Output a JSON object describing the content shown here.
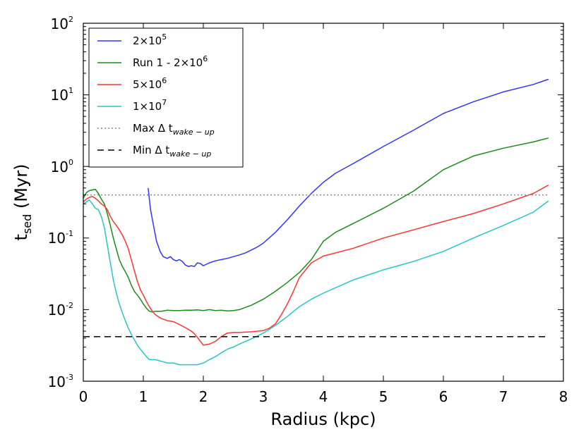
{
  "chart_data": {
    "type": "line",
    "title": "",
    "xlabel": "Radius (kpc)",
    "ylabel": {
      "base": "t",
      "sub": "sed",
      "suffix": " (Myr)"
    },
    "xlim": [
      0,
      8
    ],
    "ylim_log10": [
      -3,
      2
    ],
    "yscale": "log",
    "grid": false,
    "legend_position": "top-left",
    "x_ticks": [
      "0",
      "1",
      "2",
      "3",
      "4",
      "5",
      "6",
      "7",
      "8"
    ],
    "y_ticks": [
      {
        "base": "10",
        "exp": "-3"
      },
      {
        "base": "10",
        "exp": "-2"
      },
      {
        "base": "10",
        "exp": "-1"
      },
      {
        "base": "10",
        "exp": "0"
      },
      {
        "base": "10",
        "exp": "1"
      },
      {
        "base": "10",
        "exp": "2"
      }
    ],
    "series": [
      {
        "name": "2×10^5",
        "legend": {
          "base": "2×10",
          "sup": "5",
          "sub": ""
        },
        "color": "#3333ff",
        "dash": "",
        "x": [
          1.08,
          1.12,
          1.17,
          1.22,
          1.28,
          1.33,
          1.4,
          1.45,
          1.5,
          1.55,
          1.6,
          1.65,
          1.7,
          1.75,
          1.8,
          1.85,
          1.9,
          1.95,
          2.0,
          2.05,
          2.1,
          2.2,
          2.3,
          2.4,
          2.5,
          2.6,
          2.7,
          2.8,
          2.9,
          3.0,
          3.2,
          3.4,
          3.6,
          3.8,
          4.0,
          4.2,
          4.5,
          5.0,
          5.5,
          6.0,
          6.5,
          7.0,
          7.5,
          7.75
        ],
        "y": [
          0.5,
          0.25,
          0.15,
          0.09,
          0.065,
          0.055,
          0.052,
          0.055,
          0.05,
          0.048,
          0.05,
          0.047,
          0.042,
          0.04,
          0.041,
          0.04,
          0.045,
          0.044,
          0.041,
          0.043,
          0.045,
          0.048,
          0.05,
          0.052,
          0.055,
          0.058,
          0.062,
          0.068,
          0.075,
          0.085,
          0.12,
          0.18,
          0.28,
          0.42,
          0.6,
          0.8,
          1.1,
          1.9,
          3.2,
          5.5,
          8.0,
          11.0,
          14.0,
          16.5
        ]
      },
      {
        "name": "Run 1 - 2×10^6",
        "legend": {
          "base": "Run 1 - 2×10",
          "sup": "6",
          "sub": ""
        },
        "color": "#1a8c1a",
        "dash": "",
        "x": [
          0.0,
          0.05,
          0.1,
          0.15,
          0.2,
          0.25,
          0.3,
          0.35,
          0.4,
          0.45,
          0.5,
          0.55,
          0.6,
          0.65,
          0.7,
          0.75,
          0.8,
          0.85,
          0.9,
          0.95,
          1.0,
          1.05,
          1.1,
          1.15,
          1.2,
          1.3,
          1.4,
          1.5,
          1.6,
          1.7,
          1.8,
          1.9,
          2.0,
          2.1,
          2.2,
          2.3,
          2.4,
          2.5,
          2.6,
          2.8,
          3.0,
          3.2,
          3.4,
          3.6,
          3.8,
          4.0,
          4.2,
          4.5,
          5.0,
          5.5,
          6.0,
          6.5,
          7.0,
          7.5,
          7.75
        ],
        "y": [
          0.36,
          0.43,
          0.46,
          0.47,
          0.48,
          0.42,
          0.35,
          0.3,
          0.22,
          0.15,
          0.1,
          0.07,
          0.05,
          0.04,
          0.034,
          0.028,
          0.022,
          0.018,
          0.016,
          0.014,
          0.012,
          0.0105,
          0.0095,
          0.0093,
          0.0095,
          0.0095,
          0.0098,
          0.0097,
          0.0097,
          0.0098,
          0.0098,
          0.0099,
          0.0097,
          0.01,
          0.0097,
          0.0098,
          0.0096,
          0.0097,
          0.01,
          0.0115,
          0.014,
          0.018,
          0.024,
          0.033,
          0.05,
          0.09,
          0.12,
          0.16,
          0.26,
          0.45,
          0.9,
          1.4,
          1.8,
          2.2,
          2.5
        ]
      },
      {
        "name": "5×10^6",
        "legend": {
          "base": "5×10",
          "sup": "6",
          "sub": ""
        },
        "color": "#ff3333",
        "dash": "",
        "x": [
          0.0,
          0.05,
          0.1,
          0.15,
          0.2,
          0.25,
          0.3,
          0.35,
          0.4,
          0.45,
          0.5,
          0.55,
          0.6,
          0.65,
          0.7,
          0.75,
          0.8,
          0.85,
          0.9,
          0.95,
          1.0,
          1.05,
          1.1,
          1.15,
          1.2,
          1.3,
          1.4,
          1.5,
          1.6,
          1.7,
          1.8,
          1.85,
          1.9,
          1.95,
          2.0,
          2.1,
          2.2,
          2.3,
          2.4,
          2.5,
          2.6,
          2.8,
          3.0,
          3.1,
          3.2,
          3.3,
          3.4,
          3.5,
          3.6,
          3.8,
          4.0,
          4.5,
          5.0,
          5.5,
          6.0,
          6.5,
          7.0,
          7.5,
          7.75
        ],
        "y": [
          0.32,
          0.35,
          0.37,
          0.38,
          0.36,
          0.33,
          0.3,
          0.28,
          0.25,
          0.2,
          0.17,
          0.15,
          0.13,
          0.11,
          0.09,
          0.07,
          0.05,
          0.035,
          0.025,
          0.019,
          0.016,
          0.013,
          0.011,
          0.0095,
          0.0085,
          0.0075,
          0.007,
          0.0068,
          0.0062,
          0.0056,
          0.005,
          0.0046,
          0.0041,
          0.0036,
          0.0032,
          0.0033,
          0.0036,
          0.0042,
          0.0047,
          0.0048,
          0.0048,
          0.0049,
          0.0051,
          0.0055,
          0.0063,
          0.0085,
          0.012,
          0.018,
          0.028,
          0.045,
          0.056,
          0.072,
          0.1,
          0.13,
          0.17,
          0.22,
          0.3,
          0.42,
          0.55
        ]
      },
      {
        "name": "1×10^7",
        "legend": {
          "base": "1×10",
          "sup": "7",
          "sub": ""
        },
        "color": "#26c6c6",
        "dash": "",
        "x": [
          0.0,
          0.05,
          0.1,
          0.15,
          0.2,
          0.25,
          0.3,
          0.35,
          0.4,
          0.45,
          0.5,
          0.55,
          0.6,
          0.65,
          0.7,
          0.75,
          0.8,
          0.85,
          0.9,
          0.95,
          1.0,
          1.05,
          1.1,
          1.2,
          1.3,
          1.4,
          1.5,
          1.6,
          1.7,
          1.8,
          1.9,
          2.0,
          2.1,
          2.2,
          2.3,
          2.4,
          2.5,
          2.6,
          2.8,
          3.0,
          3.2,
          3.4,
          3.6,
          3.8,
          4.0,
          4.5,
          5.0,
          5.5,
          6.0,
          6.5,
          7.0,
          7.5,
          7.75
        ],
        "y": [
          0.3,
          0.32,
          0.34,
          0.3,
          0.26,
          0.25,
          0.2,
          0.14,
          0.08,
          0.045,
          0.026,
          0.017,
          0.012,
          0.009,
          0.007,
          0.0055,
          0.0045,
          0.0038,
          0.0032,
          0.0028,
          0.0025,
          0.0022,
          0.002,
          0.002,
          0.0019,
          0.0018,
          0.0018,
          0.0017,
          0.0017,
          0.0017,
          0.0017,
          0.0018,
          0.002,
          0.0022,
          0.0025,
          0.0028,
          0.003,
          0.0033,
          0.0039,
          0.0047,
          0.006,
          0.008,
          0.011,
          0.014,
          0.017,
          0.026,
          0.036,
          0.047,
          0.065,
          0.1,
          0.15,
          0.23,
          0.33
        ]
      },
      {
        "name": "Max Δ t_wake-up",
        "legend": {
          "base": "Max Δ t",
          "sup": "",
          "sub": "wake − up"
        },
        "color": "#888888",
        "dash": "2,3",
        "x": [
          0,
          7.75
        ],
        "y": [
          0.4,
          0.4
        ]
      },
      {
        "name": "Min Δ t_wake-up",
        "legend": {
          "base": "Min Δ t",
          "sup": "",
          "sub": "wake − up"
        },
        "color": "#000000",
        "dash": "9,6",
        "x": [
          0,
          7.75
        ],
        "y": [
          0.0042,
          0.0042
        ]
      }
    ]
  }
}
